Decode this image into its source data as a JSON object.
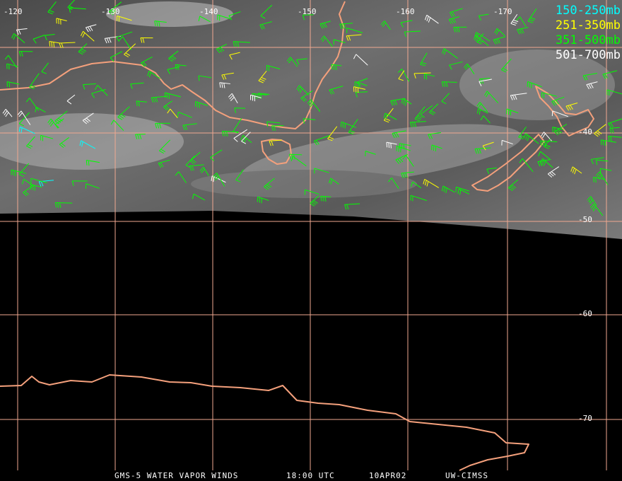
{
  "longitude_labels": [
    "-120",
    "-130",
    "-140",
    "-150",
    "-160",
    "-170"
  ],
  "latitude_labels": [
    "-40",
    "-50",
    "-60",
    "-70"
  ],
  "legend": [
    {
      "label": "150-250mb",
      "color": "#00ffff"
    },
    {
      "label": "251-350mb",
      "color": "#ffff00"
    },
    {
      "label": "351-500mb",
      "color": "#00ff00"
    },
    {
      "label": "501-700mb",
      "color": "#ffffff"
    }
  ],
  "footer": {
    "satellite": "GMS-5 WATER VAPOR WINDS",
    "time": "18:00 UTC",
    "date": "10APR02",
    "source": "UW-CIMSS"
  }
}
